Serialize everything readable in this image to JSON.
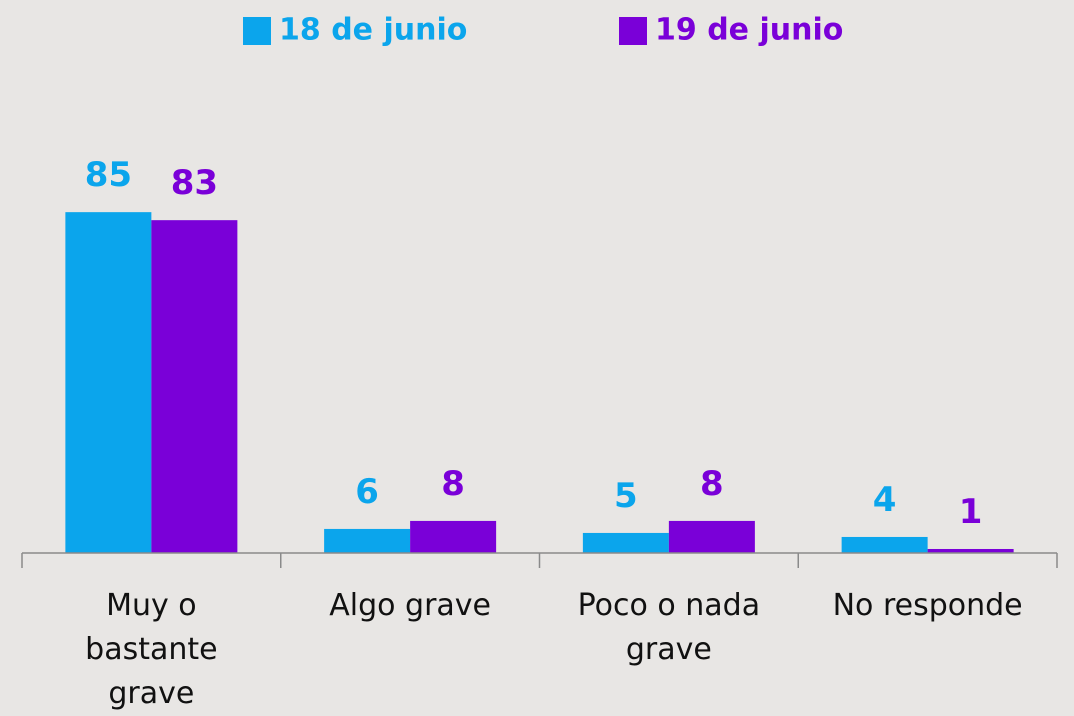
{
  "chart_data": {
    "type": "bar",
    "categories": [
      "Muy o bastante grave",
      "Algo grave",
      "Poco o nada grave",
      "No responde"
    ],
    "series": [
      {
        "name": "18 de junio",
        "color": "#0ba5ec",
        "values": [
          85,
          6,
          5,
          4
        ]
      },
      {
        "name": "19 de junio",
        "color": "#7a00d8",
        "values": [
          83,
          8,
          8,
          1
        ]
      }
    ]
  }
}
